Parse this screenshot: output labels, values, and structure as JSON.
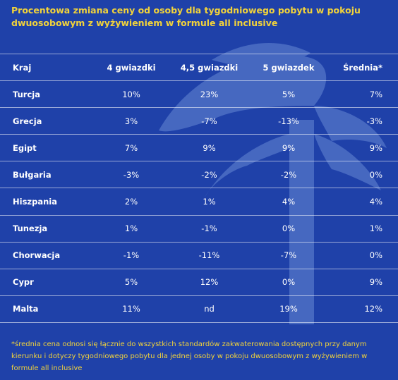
{
  "title": "Procentowa zmiana ceny od osoby dla tygodniowego pobytu w pokoju dwuosobowym z wyżywieniem w formule all inclusive",
  "footnote": "*średnia cena odnosi się łącznie do wszystkich standardów zakwaterowania dostępnych przy danym kierunku i dotyczy tygodniowego pobytu dla jednej osoby w pokoju dwuosobowym z wyżywieniem w formule all inclusive",
  "colors": {
    "background": "#1f41a9",
    "title": "#f2d33a",
    "text": "#ffffff"
  },
  "chart_data": {
    "type": "table",
    "columns": [
      "Kraj",
      "4 gwiazdki",
      "4,5 gwiazdki",
      "5 gwiazdek",
      "Średnia*"
    ],
    "rows": [
      [
        "Turcja",
        "10%",
        "23%",
        "5%",
        "7%"
      ],
      [
        "Grecja",
        "3%",
        "-7%",
        "-13%",
        "-3%"
      ],
      [
        "Egipt",
        "7%",
        "9%",
        "9%",
        "9%"
      ],
      [
        "Bułgaria",
        "-3%",
        "-2%",
        "-2%",
        "0%"
      ],
      [
        "Hiszpania",
        "2%",
        "1%",
        "4%",
        "4%"
      ],
      [
        "Tunezja",
        "1%",
        "-1%",
        "0%",
        "1%"
      ],
      [
        "Chorwacja",
        "-1%",
        "-11%",
        "-7%",
        "0%"
      ],
      [
        "Cypr",
        "5%",
        "12%",
        "0%",
        "9%"
      ],
      [
        "Malta",
        "11%",
        "nd",
        "19%",
        "12%"
      ]
    ]
  }
}
